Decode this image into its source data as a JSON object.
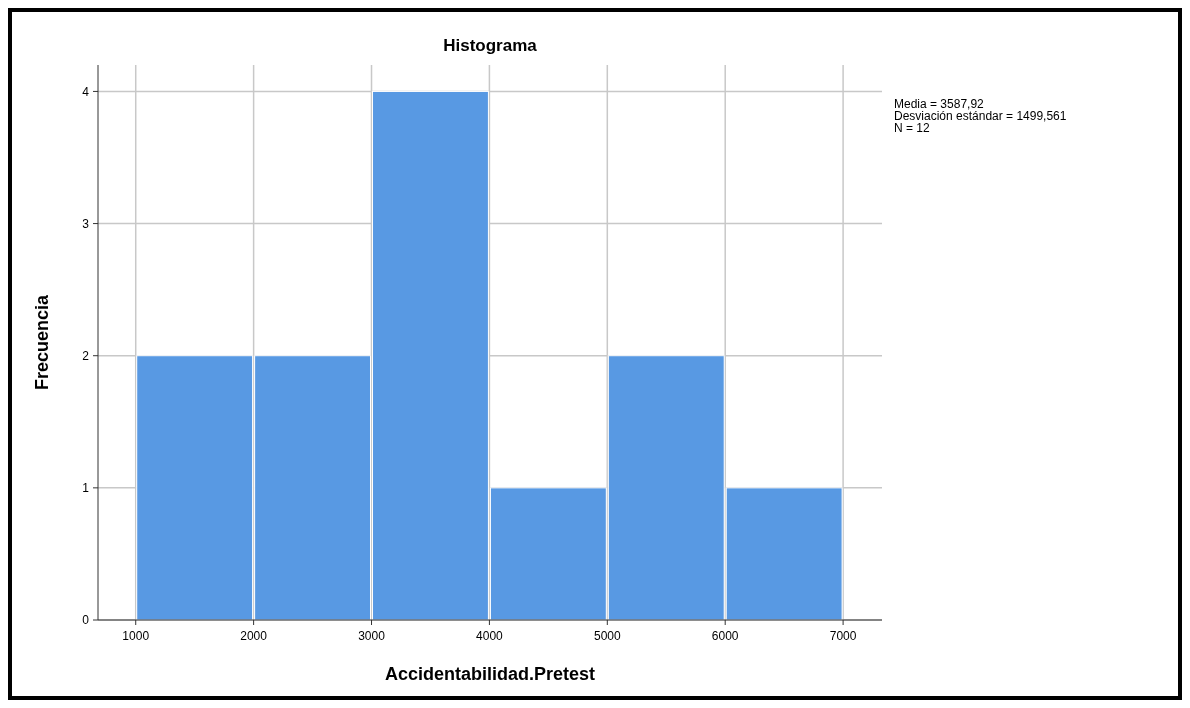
{
  "chart_data": {
    "type": "histogram",
    "title": "Histograma",
    "xlabel": "Accidentabilidad.Pretest",
    "ylabel": "Frecuencia",
    "bins": [
      1000,
      2000,
      3000,
      4000,
      5000,
      6000,
      7000
    ],
    "values": [
      2,
      2,
      4,
      1,
      2,
      1
    ],
    "color": "#5899e3",
    "xlim": [
      680,
      7330
    ],
    "xticks": [
      1000,
      2000,
      3000,
      4000,
      5000,
      6000,
      7000
    ],
    "ylim": [
      0,
      4.2
    ],
    "yticks": [
      0,
      1,
      2,
      3,
      4
    ],
    "grid": true,
    "annotations": [
      "Media = 3587,92",
      "Desviación estándar = 1499,561",
      "N = 12"
    ]
  }
}
